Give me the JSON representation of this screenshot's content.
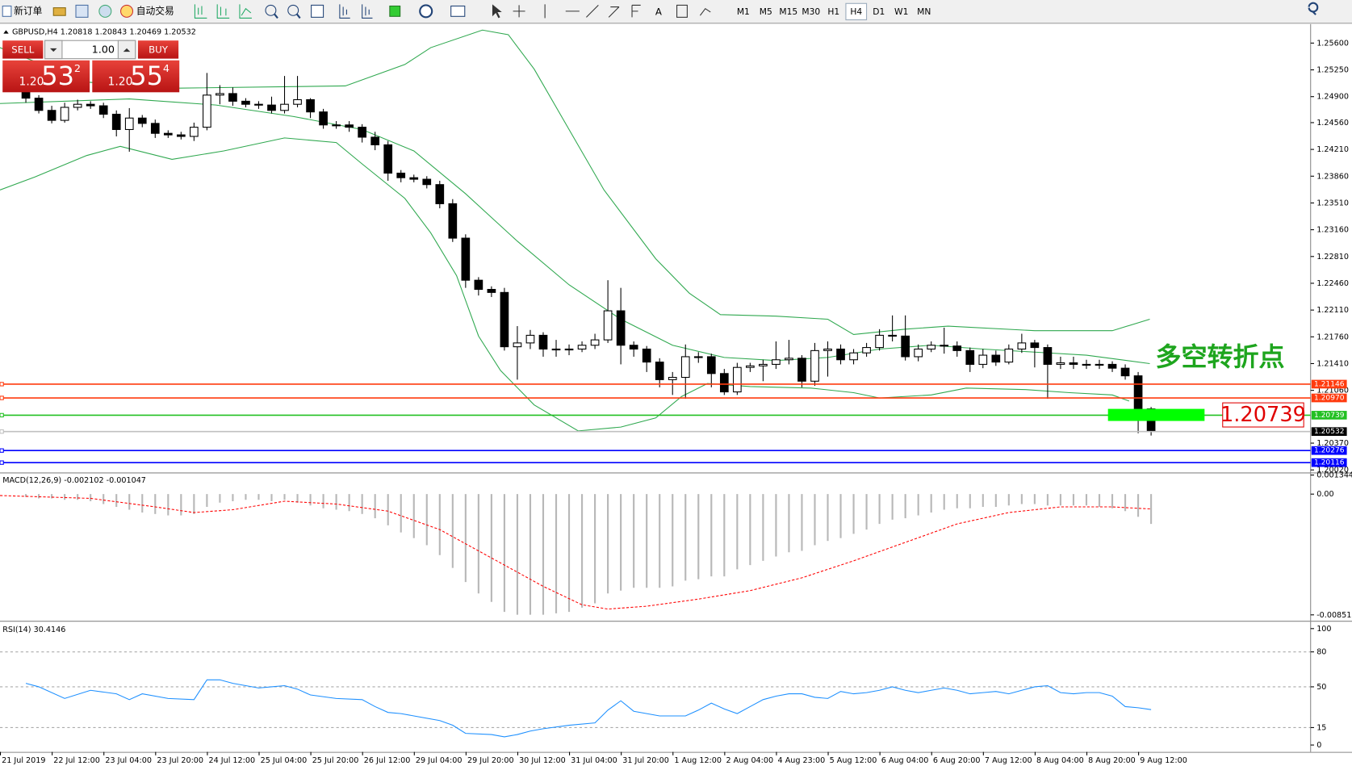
{
  "toolbar": {
    "new_order": "新订单",
    "auto_trading": "自动交易",
    "timeframes": [
      "M1",
      "M5",
      "M15",
      "M30",
      "H1",
      "H4",
      "D1",
      "W1",
      "MN"
    ],
    "active_timeframe": "H4"
  },
  "trade_panel": {
    "sell": "SELL",
    "buy": "BUY",
    "lot": "1.00",
    "sell_price": {
      "prefix": "1.20",
      "big": "53",
      "sup": "2"
    },
    "buy_price": {
      "prefix": "1.20",
      "big": "55",
      "sup": "4"
    }
  },
  "chart_data": [
    {
      "type": "candlestick",
      "title": "GBPUSD,H4  1.20818 1.20843 1.20469 1.20532",
      "candles": [
        [
          1.25,
          1.2505,
          1.2482,
          1.2488
        ],
        [
          1.2488,
          1.2492,
          1.2468,
          1.2472
        ],
        [
          1.2472,
          1.2478,
          1.2455,
          1.2459
        ],
        [
          1.2459,
          1.2482,
          1.2456,
          1.2476
        ],
        [
          1.2476,
          1.2486,
          1.2472,
          1.248
        ],
        [
          1.248,
          1.2484,
          1.2474,
          1.2478
        ],
        [
          1.2478,
          1.2482,
          1.2462,
          1.2467
        ],
        [
          1.2467,
          1.2472,
          1.2438,
          1.2447
        ],
        [
          1.2447,
          1.2475,
          1.2418,
          1.2462
        ],
        [
          1.2462,
          1.2466,
          1.245,
          1.2455
        ],
        [
          1.2455,
          1.246,
          1.2436,
          1.2442
        ],
        [
          1.2442,
          1.2446,
          1.2436,
          1.244
        ],
        [
          1.244,
          1.2444,
          1.2434,
          1.2438
        ],
        [
          1.2438,
          1.2456,
          1.2432,
          1.245
        ],
        [
          1.245,
          1.2521,
          1.2446,
          1.2492
        ],
        [
          1.2492,
          1.2505,
          1.248,
          1.2494
        ],
        [
          1.2494,
          1.2502,
          1.2478,
          1.2484
        ],
        [
          1.2484,
          1.2488,
          1.2476,
          1.248
        ],
        [
          1.248,
          1.2484,
          1.2474,
          1.2479
        ],
        [
          1.2479,
          1.249,
          1.2468,
          1.2472
        ],
        [
          1.2472,
          1.2517,
          1.2468,
          1.248
        ],
        [
          1.248,
          1.2517,
          1.2476,
          1.2486
        ],
        [
          1.2486,
          1.2488,
          1.2462,
          1.247
        ],
        [
          1.247,
          1.2474,
          1.2448,
          1.2453
        ],
        [
          1.2453,
          1.2458,
          1.2448,
          1.2453
        ],
        [
          1.2453,
          1.2458,
          1.2444,
          1.245
        ],
        [
          1.245,
          1.2454,
          1.243,
          1.2437
        ],
        [
          1.2437,
          1.2444,
          1.242,
          1.2427
        ],
        [
          1.2427,
          1.2432,
          1.238,
          1.239
        ],
        [
          1.239,
          1.2394,
          1.2378,
          1.2384
        ],
        [
          1.2384,
          1.2388,
          1.2378,
          1.2382
        ],
        [
          1.2382,
          1.2386,
          1.237,
          1.2375
        ],
        [
          1.2375,
          1.238,
          1.2344,
          1.235
        ],
        [
          1.235,
          1.2356,
          1.23,
          1.2305
        ],
        [
          1.2305,
          1.231,
          1.224,
          1.225
        ],
        [
          1.225,
          1.2254,
          1.223,
          1.2238
        ],
        [
          1.2238,
          1.2242,
          1.2228,
          1.2234
        ],
        [
          1.2234,
          1.224,
          1.2158,
          1.2163
        ],
        [
          1.2163,
          1.219,
          1.212,
          1.2168
        ],
        [
          1.2168,
          1.2185,
          1.216,
          1.2178
        ],
        [
          1.2178,
          1.2182,
          1.215,
          1.216
        ],
        [
          1.216,
          1.2172,
          1.215,
          1.216
        ],
        [
          1.216,
          1.2166,
          1.2152,
          1.216
        ],
        [
          1.216,
          1.217,
          1.2156,
          1.2165
        ],
        [
          1.2165,
          1.218,
          1.216,
          1.2172
        ],
        [
          1.2172,
          1.225,
          1.2168,
          1.221
        ],
        [
          1.221,
          1.224,
          1.214,
          1.2165
        ],
        [
          1.2165,
          1.217,
          1.215,
          1.216
        ],
        [
          1.216,
          1.2164,
          1.213,
          1.2143
        ],
        [
          1.2143,
          1.2148,
          1.211,
          1.212
        ],
        [
          1.212,
          1.213,
          1.21,
          1.2123
        ],
        [
          1.2123,
          1.2166,
          1.2095,
          1.215
        ],
        [
          1.215,
          1.2156,
          1.2142,
          1.215
        ],
        [
          1.215,
          1.2154,
          1.211,
          1.2128
        ],
        [
          1.2128,
          1.2134,
          1.21,
          1.2104
        ],
        [
          1.2104,
          1.2142,
          1.21,
          1.2136
        ],
        [
          1.2136,
          1.2142,
          1.213,
          1.2138
        ],
        [
          1.2138,
          1.2146,
          1.2118,
          1.214
        ],
        [
          1.214,
          1.217,
          1.2134,
          1.2146
        ],
        [
          1.2146,
          1.2172,
          1.214,
          1.2148
        ],
        [
          1.2148,
          1.2152,
          1.211,
          1.2118
        ],
        [
          1.2118,
          1.2168,
          1.2112,
          1.2158
        ],
        [
          1.2158,
          1.217,
          1.2124,
          1.216
        ],
        [
          1.216,
          1.2166,
          1.214,
          1.2146
        ],
        [
          1.2146,
          1.216,
          1.214,
          1.2155
        ],
        [
          1.2155,
          1.2168,
          1.215,
          1.2162
        ],
        [
          1.2162,
          1.2186,
          1.2158,
          1.2178
        ],
        [
          1.2178,
          1.2204,
          1.217,
          1.2177
        ],
        [
          1.2177,
          1.2204,
          1.2145,
          1.215
        ],
        [
          1.215,
          1.2166,
          1.2144,
          1.216
        ],
        [
          1.216,
          1.217,
          1.2156,
          1.2165
        ],
        [
          1.2165,
          1.2188,
          1.2154,
          1.2164
        ],
        [
          1.2164,
          1.217,
          1.215,
          1.2158
        ],
        [
          1.2158,
          1.2162,
          1.213,
          1.214
        ],
        [
          1.214,
          1.216,
          1.2135,
          1.2152
        ],
        [
          1.2152,
          1.2158,
          1.2138,
          1.2143
        ],
        [
          1.2143,
          1.2166,
          1.214,
          1.216
        ],
        [
          1.216,
          1.218,
          1.2155,
          1.2168
        ],
        [
          1.2168,
          1.2172,
          1.2136,
          1.2162
        ],
        [
          1.2162,
          1.2166,
          1.2095,
          1.214
        ],
        [
          1.214,
          1.215,
          1.2134,
          1.2142
        ],
        [
          1.2142,
          1.215,
          1.2134,
          1.214
        ],
        [
          1.214,
          1.2146,
          1.2134,
          1.214
        ],
        [
          1.214,
          1.2146,
          1.2134,
          1.214
        ],
        [
          1.214,
          1.2144,
          1.213,
          1.2135
        ],
        [
          1.2135,
          1.214,
          1.212,
          1.2125
        ],
        [
          1.2125,
          1.213,
          1.205,
          1.20818
        ],
        [
          1.20818,
          1.20843,
          1.20469,
          1.20532
        ]
      ],
      "bands": [
        {
          "color": "#2fa84f",
          "x": [
            -2,
            4.7,
            11.3,
            24.7,
            29.3,
            31.3,
            35.3,
            37.3,
            39.3,
            42,
            44.7,
            48.7,
            51.3,
            53.7,
            58,
            62,
            64,
            68,
            71.3,
            78,
            84,
            86.9
          ],
          "values": [
            1.2554,
            1.2509,
            1.2501,
            1.2504,
            1.2532,
            1.2554,
            1.2577,
            1.2571,
            1.2526,
            1.2447,
            1.2368,
            1.2278,
            1.2233,
            1.2205,
            1.2203,
            1.2199,
            1.2179,
            1.2186,
            1.219,
            1.2184,
            1.2184,
            1.2199
          ]
        },
        {
          "color": "#2fa84f",
          "x": [
            -2,
            8,
            14.7,
            20.7,
            26,
            30,
            34,
            38,
            42,
            46,
            50,
            54,
            58,
            62,
            66,
            70,
            74,
            78,
            82,
            86.9
          ],
          "values": [
            1.2481,
            1.2487,
            1.2479,
            1.2464,
            1.2447,
            1.2419,
            1.2363,
            1.2301,
            1.2244,
            1.2199,
            1.2165,
            1.2149,
            1.2145,
            1.2149,
            1.216,
            1.2165,
            1.216,
            1.2156,
            1.2152,
            1.2141
          ]
        },
        {
          "color": "#2fa84f",
          "x": [
            -2,
            0.7,
            4.7,
            7.3,
            11.3,
            15.3,
            20,
            24,
            26,
            29.3,
            31.3,
            33.3,
            35,
            36.7,
            39.3,
            42.7,
            46,
            48.7,
            50.7,
            52.7,
            56,
            60.7,
            64,
            66,
            70,
            72.7,
            77.3,
            80.7,
            84,
            85.3
          ],
          "values": [
            1.2368,
            1.2385,
            1.2413,
            1.2425,
            1.2408,
            1.2419,
            1.2436,
            1.243,
            1.2402,
            1.2357,
            1.2312,
            1.2256,
            1.2177,
            1.2132,
            1.2087,
            1.2053,
            1.2058,
            1.207,
            1.2098,
            1.2115,
            1.2111,
            1.2109,
            1.2103,
            1.2096,
            1.21,
            1.2109,
            1.2107,
            1.2103,
            1.21,
            1.2092
          ]
        }
      ],
      "ylim": [
        1.19986,
        1.25825
      ],
      "yticks": [
        {
          "value": 1.256,
          "label": "1.25600"
        },
        {
          "value": 1.2525,
          "label": "1.25250"
        },
        {
          "value": 1.249,
          "label": "1.24900"
        },
        {
          "value": 1.2456,
          "label": "1.24560"
        },
        {
          "value": 1.2421,
          "label": "1.24210"
        },
        {
          "value": 1.2386,
          "label": "1.23860"
        },
        {
          "value": 1.2351,
          "label": "1.23510"
        },
        {
          "value": 1.2316,
          "label": "1.23160"
        },
        {
          "value": 1.2281,
          "label": "1.22810"
        },
        {
          "value": 1.2246,
          "label": "1.22460"
        },
        {
          "value": 1.2211,
          "label": "1.22110"
        },
        {
          "value": 1.2176,
          "label": "1.21760"
        },
        {
          "value": 1.2141,
          "label": "1.21410"
        },
        {
          "value": 1.2106,
          "label": "1.21060"
        },
        {
          "value": 1.2037,
          "label": "1.20370"
        },
        {
          "value": 1.2002,
          "label": "1.20020"
        }
      ],
      "levels": [
        {
          "value": 1.21146,
          "label": "1.21146",
          "color": "#ff3b0f"
        },
        {
          "value": 1.2097,
          "label": "1.20970",
          "color": "#ff3b0f"
        },
        {
          "value": 1.20739,
          "label": "1.20739",
          "color": "#22c022"
        },
        {
          "value": 1.20532,
          "label": "1.20532",
          "color": "#c0c0c0"
        },
        {
          "value": 1.20276,
          "label": "1.20276",
          "color": "#0000ff"
        },
        {
          "value": 1.20116,
          "label": "1.20116",
          "color": "#0000ff"
        }
      ],
      "annotation": "多空转折点",
      "annotation_color": "#1ea51e",
      "marker_label": "1.20739",
      "marker_color": "#00ff00",
      "time_labels": [
        "21 Jul 2019",
        "22 Jul 12:00",
        "23 Jul 04:00",
        "23 Jul 20:00",
        "24 Jul 12:00",
        "25 Jul 04:00",
        "25 Jul 20:00",
        "26 Jul 12:00",
        "29 Jul 04:00",
        "29 Jul 20:00",
        "30 Jul 12:00",
        "31 Jul 04:00",
        "31 Jul 20:00",
        "1 Aug 12:00",
        "2 Aug 04:00",
        "4 Aug 23:00",
        "5 Aug 12:00",
        "6 Aug 04:00",
        "6 Aug 20:00",
        "7 Aug 12:00",
        "8 Aug 04:00",
        "8 Aug 20:00",
        "9 Aug 12:00"
      ]
    },
    {
      "type": "macd",
      "title": "MACD(12,26,9) -0.002102 -0.001047",
      "histogram": {
        "color": "#b8b8b8",
        "values": [
          -0.0002,
          -0.0003,
          -0.0003,
          -0.0004,
          -0.0004,
          -0.0005,
          -0.0007,
          -0.0009,
          -0.0011,
          -0.0013,
          -0.0014,
          -0.0015,
          -0.0015,
          -0.0014,
          -0.0009,
          -0.0006,
          -0.0005,
          -0.0004,
          -0.0004,
          -0.0005,
          -0.0004,
          -0.0006,
          -0.0008,
          -0.001,
          -0.0011,
          -0.0012,
          -0.0014,
          -0.0017,
          -0.0022,
          -0.0027,
          -0.0031,
          -0.0036,
          -0.0043,
          -0.0052,
          -0.0062,
          -0.007,
          -0.0076,
          -0.0083,
          -0.0085,
          -0.0085,
          -0.0085,
          -0.0084,
          -0.0083,
          -0.008,
          -0.0077,
          -0.007,
          -0.0068,
          -0.0066,
          -0.0066,
          -0.0066,
          -0.0065,
          -0.0061,
          -0.006,
          -0.0058,
          -0.0058,
          -0.0053,
          -0.005,
          -0.0047,
          -0.0044,
          -0.0041,
          -0.004,
          -0.0036,
          -0.0033,
          -0.0031,
          -0.0028,
          -0.0025,
          -0.0021,
          -0.0018,
          -0.0017,
          -0.0015,
          -0.0013,
          -0.0011,
          -0.001,
          -0.001,
          -0.0009,
          -0.0009,
          -0.0008,
          -0.0007,
          -0.0007,
          -0.0008,
          -0.0008,
          -0.0008,
          -0.0008,
          -0.0009,
          -0.001,
          -0.0012,
          -0.0016,
          -0.002102
        ]
      },
      "signal": {
        "color": "#ff0000",
        "x": [
          -2,
          5,
          10,
          13,
          16,
          20,
          24,
          28,
          32,
          36,
          40,
          43,
          45,
          48,
          52,
          56,
          60,
          64,
          68,
          72,
          76,
          80,
          84,
          86,
          87
        ],
        "values": [
          -0.0001,
          -0.0003,
          -0.0009,
          -0.0013,
          -0.0011,
          -0.0005,
          -0.0007,
          -0.0012,
          -0.0025,
          -0.0045,
          -0.0065,
          -0.0078,
          -0.0081,
          -0.0079,
          -0.0074,
          -0.0068,
          -0.0059,
          -0.0047,
          -0.0034,
          -0.0021,
          -0.0013,
          -0.0009,
          -0.0009,
          -0.001,
          -0.001047
        ]
      },
      "ylim": [
        -0.00893,
        0.0014
      ],
      "yticks": [
        0.001344,
        {
          "value": 0,
          "label": "0.00"
        },
        -0.00851
      ]
    },
    {
      "type": "line",
      "title": "RSI(14) 30.4146",
      "color": "#1e90ff",
      "x": [
        0,
        1,
        3,
        5,
        7,
        8,
        9,
        11,
        13,
        14,
        15,
        16,
        17,
        18,
        19,
        20,
        21,
        22,
        24,
        26,
        27,
        28,
        29,
        30,
        32,
        33,
        34,
        36,
        37,
        38,
        39,
        40,
        42,
        44,
        45,
        46,
        47,
        49,
        51,
        52,
        53,
        54,
        55,
        56,
        57,
        58,
        59,
        60,
        61,
        62,
        63,
        64,
        65,
        66,
        67,
        68,
        69,
        70,
        71,
        72,
        73,
        74,
        75,
        76,
        77,
        78,
        79,
        80,
        81,
        82,
        83,
        84,
        85,
        86,
        87
      ],
      "values": [
        53,
        50,
        40,
        47,
        44,
        39,
        44,
        40,
        39,
        56,
        56,
        53,
        51,
        49,
        50,
        51,
        48,
        43,
        40,
        39,
        33,
        28,
        27,
        25,
        21,
        17,
        10,
        9,
        7,
        9,
        12,
        14,
        17,
        19,
        30,
        38,
        29,
        25,
        25,
        30,
        36,
        31,
        27,
        33,
        39,
        42,
        44,
        44,
        41,
        40,
        46,
        44,
        45,
        47,
        50,
        47,
        45,
        47,
        49,
        47,
        44,
        45,
        46,
        44,
        47,
        50,
        51,
        45,
        44,
        45,
        45,
        42,
        33,
        32,
        30.4146
      ],
      "ylim": [
        -5.9,
        105.2
      ],
      "yticks": [
        100,
        80,
        50,
        15,
        0
      ]
    }
  ]
}
